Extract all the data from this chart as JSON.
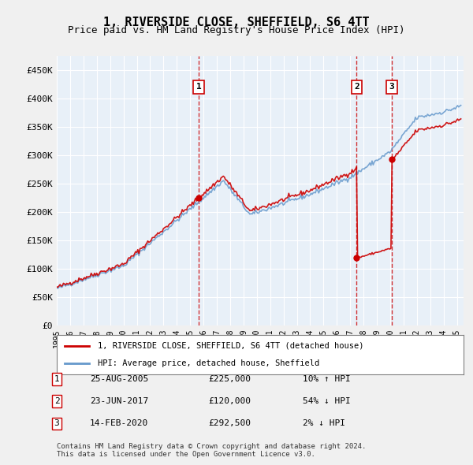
{
  "title": "1, RIVERSIDE CLOSE, SHEFFIELD, S6 4TT",
  "subtitle": "Price paid vs. HM Land Registry's House Price Index (HPI)",
  "ylabel_ticks": [
    "£0",
    "£50K",
    "£100K",
    "£150K",
    "£200K",
    "£250K",
    "£300K",
    "£350K",
    "£400K",
    "£450K"
  ],
  "ytick_values": [
    0,
    50000,
    100000,
    150000,
    200000,
    250000,
    300000,
    350000,
    400000,
    450000
  ],
  "ylim": [
    0,
    475000
  ],
  "xlim_start": 1995.0,
  "xlim_end": 2025.5,
  "background_color": "#dce9f5",
  "plot_bg_color": "#e8f0f8",
  "grid_color": "#ffffff",
  "sale_line_color": "#cc0000",
  "hpi_line_color": "#6699cc",
  "vline_color": "#cc0000",
  "legend_label_sale": "1, RIVERSIDE CLOSE, SHEFFIELD, S6 4TT (detached house)",
  "legend_label_hpi": "HPI: Average price, detached house, Sheffield",
  "transactions": [
    {
      "num": 1,
      "date": "25-AUG-2005",
      "price": 225000,
      "pct": "10%",
      "dir": "↑",
      "year": 2005.65
    },
    {
      "num": 2,
      "date": "23-JUN-2017",
      "price": 120000,
      "pct": "54%",
      "dir": "↓",
      "year": 2017.48
    },
    {
      "num": 3,
      "date": "14-FEB-2020",
      "price": 292500,
      "pct": "2%",
      "dir": "↓",
      "year": 2020.12
    }
  ],
  "footer": "Contains HM Land Registry data © Crown copyright and database right 2024.\nThis data is licensed under the Open Government Licence v3.0.",
  "xtick_years": [
    1995,
    1996,
    1997,
    1998,
    1999,
    2000,
    2001,
    2002,
    2003,
    2004,
    2005,
    2006,
    2007,
    2008,
    2009,
    2010,
    2011,
    2012,
    2013,
    2014,
    2015,
    2016,
    2017,
    2018,
    2019,
    2020,
    2021,
    2022,
    2023,
    2024,
    2025
  ]
}
